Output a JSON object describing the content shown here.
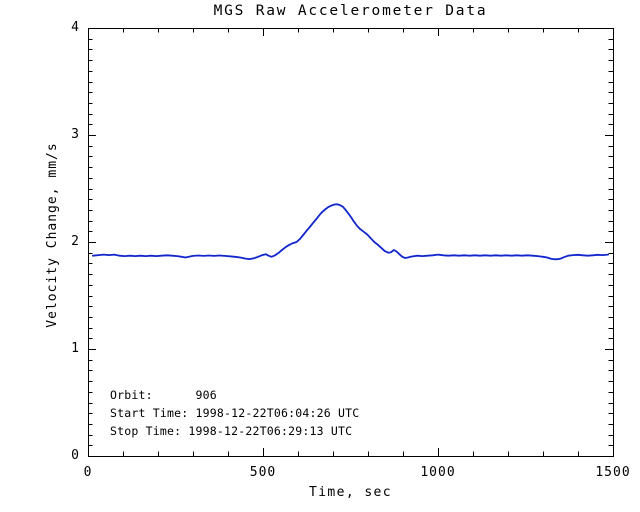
{
  "colors": {
    "line": "#1126CC",
    "axis": "#000000",
    "background": "#FFFFFF",
    "text": "#000000"
  },
  "chart_data": {
    "type": "line",
    "title": "MGS Raw Accelerometer Data",
    "xlabel": "Time, sec",
    "ylabel": "Velocity Change, mm/s",
    "xlim": [
      0,
      1500
    ],
    "ylim": [
      0,
      4
    ],
    "x_major_ticks": [
      0,
      500,
      1000,
      1500
    ],
    "y_major_ticks": [
      0,
      1,
      2,
      3,
      4
    ],
    "x_minor_interval": 100,
    "y_minor_interval": 0.1,
    "grid": false,
    "legend": false,
    "frame": "box",
    "annotations": [
      "Orbit:      906",
      "Start Time: 1998-12-22T06:04:26 UTC",
      "Stop Time: 1998-12-22T06:29:13 UTC"
    ],
    "series": [
      {
        "name": "velocity-change",
        "color": "#1126CC",
        "points": [
          [
            14,
            1.872
          ],
          [
            30,
            1.878
          ],
          [
            45,
            1.882
          ],
          [
            60,
            1.878
          ],
          [
            75,
            1.882
          ],
          [
            90,
            1.872
          ],
          [
            105,
            1.868
          ],
          [
            120,
            1.872
          ],
          [
            135,
            1.868
          ],
          [
            150,
            1.872
          ],
          [
            165,
            1.868
          ],
          [
            180,
            1.872
          ],
          [
            195,
            1.868
          ],
          [
            210,
            1.872
          ],
          [
            225,
            1.876
          ],
          [
            240,
            1.872
          ],
          [
            255,
            1.868
          ],
          [
            268,
            1.862
          ],
          [
            278,
            1.855
          ],
          [
            288,
            1.862
          ],
          [
            300,
            1.87
          ],
          [
            315,
            1.874
          ],
          [
            330,
            1.87
          ],
          [
            345,
            1.874
          ],
          [
            360,
            1.87
          ],
          [
            375,
            1.874
          ],
          [
            390,
            1.87
          ],
          [
            405,
            1.866
          ],
          [
            420,
            1.862
          ],
          [
            435,
            1.855
          ],
          [
            450,
            1.845
          ],
          [
            462,
            1.84
          ],
          [
            474,
            1.848
          ],
          [
            486,
            1.862
          ],
          [
            498,
            1.878
          ],
          [
            508,
            1.886
          ],
          [
            516,
            1.872
          ],
          [
            524,
            1.862
          ],
          [
            534,
            1.875
          ],
          [
            545,
            1.9
          ],
          [
            556,
            1.93
          ],
          [
            566,
            1.955
          ],
          [
            576,
            1.975
          ],
          [
            586,
            1.99
          ],
          [
            596,
            2.0
          ],
          [
            606,
            2.03
          ],
          [
            616,
            2.07
          ],
          [
            626,
            2.11
          ],
          [
            636,
            2.15
          ],
          [
            646,
            2.19
          ],
          [
            656,
            2.23
          ],
          [
            666,
            2.27
          ],
          [
            676,
            2.3
          ],
          [
            686,
            2.325
          ],
          [
            695,
            2.34
          ],
          [
            704,
            2.35
          ],
          [
            712,
            2.352
          ],
          [
            720,
            2.345
          ],
          [
            728,
            2.33
          ],
          [
            736,
            2.3
          ],
          [
            744,
            2.265
          ],
          [
            752,
            2.23
          ],
          [
            760,
            2.19
          ],
          [
            769,
            2.15
          ],
          [
            778,
            2.12
          ],
          [
            788,
            2.095
          ],
          [
            798,
            2.07
          ],
          [
            808,
            2.035
          ],
          [
            818,
            2.0
          ],
          [
            828,
            1.975
          ],
          [
            838,
            1.945
          ],
          [
            848,
            1.915
          ],
          [
            858,
            1.9
          ],
          [
            866,
            1.905
          ],
          [
            874,
            1.925
          ],
          [
            882,
            1.91
          ],
          [
            890,
            1.885
          ],
          [
            898,
            1.862
          ],
          [
            906,
            1.85
          ],
          [
            914,
            1.855
          ],
          [
            922,
            1.862
          ],
          [
            932,
            1.868
          ],
          [
            942,
            1.872
          ],
          [
            955,
            1.868
          ],
          [
            970,
            1.872
          ],
          [
            985,
            1.876
          ],
          [
            1000,
            1.882
          ],
          [
            1015,
            1.876
          ],
          [
            1030,
            1.872
          ],
          [
            1045,
            1.876
          ],
          [
            1060,
            1.872
          ],
          [
            1075,
            1.876
          ],
          [
            1090,
            1.872
          ],
          [
            1105,
            1.876
          ],
          [
            1120,
            1.872
          ],
          [
            1135,
            1.876
          ],
          [
            1150,
            1.872
          ],
          [
            1165,
            1.876
          ],
          [
            1180,
            1.872
          ],
          [
            1195,
            1.876
          ],
          [
            1210,
            1.872
          ],
          [
            1225,
            1.876
          ],
          [
            1240,
            1.872
          ],
          [
            1255,
            1.876
          ],
          [
            1270,
            1.872
          ],
          [
            1285,
            1.868
          ],
          [
            1300,
            1.862
          ],
          [
            1312,
            1.855
          ],
          [
            1324,
            1.842
          ],
          [
            1336,
            1.838
          ],
          [
            1348,
            1.842
          ],
          [
            1360,
            1.858
          ],
          [
            1372,
            1.872
          ],
          [
            1386,
            1.878
          ],
          [
            1400,
            1.88
          ],
          [
            1414,
            1.876
          ],
          [
            1428,
            1.872
          ],
          [
            1442,
            1.876
          ],
          [
            1456,
            1.88
          ],
          [
            1470,
            1.878
          ],
          [
            1486,
            1.882
          ]
        ]
      }
    ]
  }
}
